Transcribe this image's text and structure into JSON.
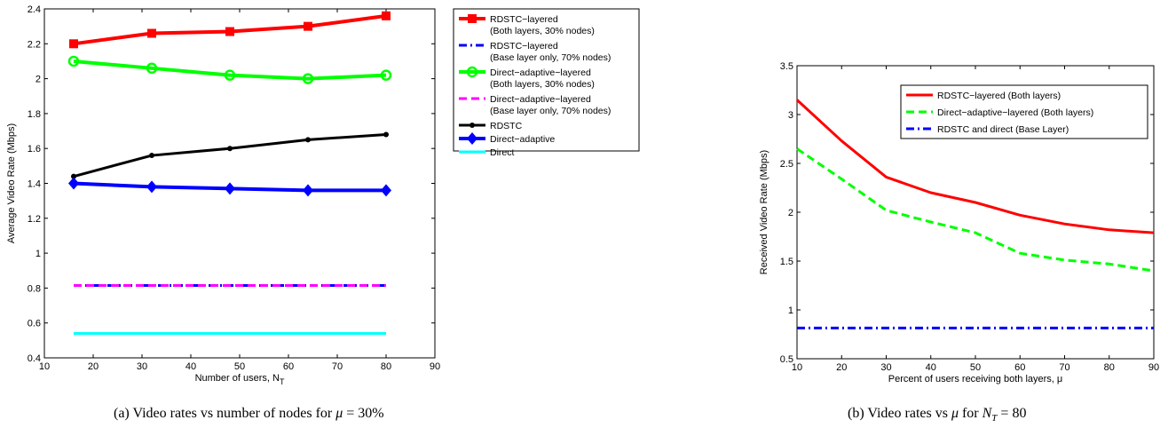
{
  "colors": {
    "red": "#ff0000",
    "blue": "#0000ff",
    "green": "#00ff00",
    "magenta": "#ff00ff",
    "black": "#000000",
    "cyan": "#00ffff"
  },
  "captions": {
    "a_text": "(a) Video rates vs number of nodes for ",
    "a_var": "μ",
    "a_eq": " = 30%",
    "b_text": "(b) Video rates vs ",
    "b_var": "μ",
    "b_for": " for ",
    "b_nt": "N",
    "b_nt_sub": "T",
    "b_eq": " = 80"
  },
  "chart_data": [
    {
      "type": "line",
      "title": "",
      "xlabel": "Number of users, N",
      "xlabel_sub": "T",
      "ylabel": "Average Video Rate (Mbps)",
      "xlim": [
        10,
        90
      ],
      "ylim": [
        0.4,
        2.4
      ],
      "xticks": [
        10,
        20,
        30,
        40,
        50,
        60,
        70,
        80,
        90
      ],
      "yticks": [
        0.4,
        0.6,
        0.8,
        1,
        1.2,
        1.4,
        1.6,
        1.8,
        2,
        2.2,
        2.4
      ],
      "ytick_labels": [
        "0.4",
        "0.6",
        "0.8",
        "1",
        "1.2",
        "1.4",
        "1.6",
        "1.8",
        "2",
        "2.2",
        "2.4"
      ],
      "grid": false,
      "legend_position": "outside-right",
      "series": [
        {
          "name": "RDSTC−layered (Both layers, 30% nodes)",
          "legend_lines": [
            "RDSTC−layered",
            "(Both layers, 30% nodes)"
          ],
          "color": "red",
          "dash": "solid",
          "width": 4,
          "marker": "square",
          "x": [
            16,
            32,
            48,
            64,
            80
          ],
          "y": [
            2.2,
            2.26,
            2.27,
            2.3,
            2.36
          ]
        },
        {
          "name": "RDSTC−layered (Base layer only, 70% nodes)",
          "legend_lines": [
            "RDSTC−layered",
            "(Base layer only, 70% nodes)"
          ],
          "color": "blue",
          "dash": "dashdot",
          "width": 3,
          "marker": "none",
          "x": [
            16,
            32,
            48,
            64,
            80
          ],
          "y": [
            0.815,
            0.815,
            0.815,
            0.815,
            0.815
          ]
        },
        {
          "name": "Direct−adaptive−layered (Both layers, 30% nodes)",
          "legend_lines": [
            "Direct−adaptive−layered",
            "(Both layers, 30% nodes)"
          ],
          "color": "green",
          "dash": "solid",
          "width": 4,
          "marker": "circle",
          "x": [
            16,
            32,
            48,
            64,
            80
          ],
          "y": [
            2.1,
            2.06,
            2.02,
            2.0,
            2.02
          ]
        },
        {
          "name": "Direct−adaptive−layered (Base layer only, 70% nodes)",
          "legend_lines": [
            "Direct−adaptive−layered",
            "(Base layer only, 70% nodes)"
          ],
          "color": "magenta",
          "dash": "dash",
          "width": 3,
          "marker": "none",
          "x": [
            16,
            32,
            48,
            64,
            80
          ],
          "y": [
            0.815,
            0.815,
            0.815,
            0.815,
            0.815
          ]
        },
        {
          "name": "RDSTC",
          "legend_lines": [
            "RDSTC"
          ],
          "color": "black",
          "dash": "solid",
          "width": 3,
          "marker": "dot",
          "x": [
            16,
            32,
            48,
            64,
            80
          ],
          "y": [
            1.44,
            1.56,
            1.6,
            1.65,
            1.68
          ]
        },
        {
          "name": "Direct−adaptive",
          "legend_lines": [
            "Direct−adaptive"
          ],
          "color": "blue",
          "dash": "solid",
          "width": 4,
          "marker": "diamond",
          "x": [
            16,
            32,
            48,
            64,
            80
          ],
          "y": [
            1.4,
            1.38,
            1.37,
            1.36,
            1.36
          ]
        },
        {
          "name": "Direct",
          "legend_lines": [
            "Direct"
          ],
          "color": "cyan",
          "dash": "solid",
          "width": 3,
          "marker": "none",
          "x": [
            16,
            32,
            48,
            64,
            80
          ],
          "y": [
            0.54,
            0.54,
            0.54,
            0.54,
            0.54
          ]
        }
      ]
    },
    {
      "type": "line",
      "title": "",
      "xlabel": "Percent of users receiving both layers, μ",
      "ylabel": "Received Video Rate (Mbps)",
      "xlim": [
        10,
        90
      ],
      "ylim": [
        0.5,
        3.5
      ],
      "xticks": [
        10,
        20,
        30,
        40,
        50,
        60,
        70,
        80,
        90
      ],
      "yticks": [
        0.5,
        1,
        1.5,
        2,
        2.5,
        3,
        3.5
      ],
      "ytick_labels": [
        "0.5",
        "1",
        "1.5",
        "2",
        "2.5",
        "3",
        "3.5"
      ],
      "grid": false,
      "legend_position": "top-right",
      "series": [
        {
          "name": "RDSTC−layered (Both layers)",
          "legend_lines": [
            "RDSTC−layered (Both layers)"
          ],
          "color": "red",
          "dash": "solid",
          "width": 3,
          "marker": "none",
          "x": [
            10,
            20,
            30,
            40,
            50,
            60,
            70,
            80,
            90
          ],
          "y": [
            3.15,
            2.73,
            2.36,
            2.2,
            2.1,
            1.97,
            1.88,
            1.82,
            1.79
          ]
        },
        {
          "name": "Direct−adaptive−layered (Both layers)",
          "legend_lines": [
            "Direct−adaptive−layered (Both layers)"
          ],
          "color": "green",
          "dash": "dash",
          "width": 3,
          "marker": "none",
          "x": [
            10,
            20,
            30,
            40,
            50,
            60,
            70,
            80,
            90
          ],
          "y": [
            2.65,
            2.34,
            2.02,
            1.9,
            1.79,
            1.58,
            1.51,
            1.47,
            1.4
          ]
        },
        {
          "name": "RDSTC and direct (Base Layer)",
          "legend_lines": [
            "RDSTC and direct (Base Layer)"
          ],
          "color": "blue",
          "dash": "dashdot",
          "width": 3,
          "marker": "none",
          "x": [
            10,
            20,
            30,
            40,
            50,
            60,
            70,
            80,
            90
          ],
          "y": [
            0.815,
            0.815,
            0.815,
            0.815,
            0.815,
            0.815,
            0.815,
            0.815,
            0.815
          ]
        }
      ]
    }
  ]
}
